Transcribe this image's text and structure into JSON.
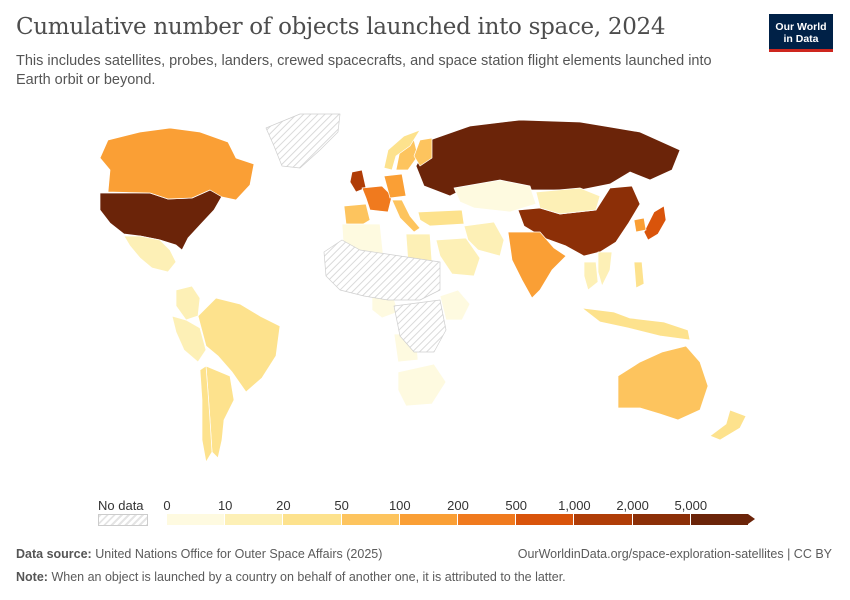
{
  "title": "Cumulative number of objects launched into space, 2024",
  "subtitle": "This includes satellites, probes, landers, crewed spacecrafts, and space station flight elements launched into Earth orbit or beyond.",
  "logo": {
    "line1": "Our World",
    "line2": "in Data"
  },
  "legend": {
    "nodata_label": "No data",
    "ticks": [
      "0",
      "10",
      "20",
      "50",
      "100",
      "200",
      "500",
      "1,000",
      "2,000",
      "5,000"
    ],
    "colors": [
      "#fefae0",
      "#fdf0b6",
      "#fde28d",
      "#fdc45e",
      "#fa9f35",
      "#f07a1e",
      "#d9540b",
      "#b03d07",
      "#8c2f07",
      "#6b2409"
    ]
  },
  "source_label": "Data source:",
  "source_text": "United Nations Office for Outer Space Affairs (2025)",
  "url": "OurWorldinData.org/space-exploration-satellites | CC BY",
  "note_label": "Note:",
  "note_text": "When an object is launched by a country on behalf of another one, it is attributed to the latter.",
  "countries": [
    {
      "name": "United States",
      "bin": 9
    },
    {
      "name": "Russia",
      "bin": 9
    },
    {
      "name": "China",
      "bin": 8
    },
    {
      "name": "United Kingdom",
      "bin": 7
    },
    {
      "name": "Japan",
      "bin": 6
    },
    {
      "name": "France",
      "bin": 5
    },
    {
      "name": "India",
      "bin": 4
    },
    {
      "name": "Canada",
      "bin": 4
    },
    {
      "name": "Germany",
      "bin": 4
    },
    {
      "name": "Australia",
      "bin": 3
    },
    {
      "name": "Brazil",
      "bin": 2
    },
    {
      "name": "Argentina",
      "bin": 2
    },
    {
      "name": "Spain",
      "bin": 3
    },
    {
      "name": "Italy",
      "bin": 3
    },
    {
      "name": "Mexico",
      "bin": 1
    },
    {
      "name": "Kazakhstan",
      "bin": 0
    },
    {
      "name": "Mongolia",
      "bin": 1
    },
    {
      "name": "Saudi Arabia",
      "bin": 1
    },
    {
      "name": "Egypt",
      "bin": 1
    },
    {
      "name": "Algeria",
      "bin": 0
    },
    {
      "name": "Nigeria",
      "bin": 0
    },
    {
      "name": "Kenya",
      "bin": 0
    },
    {
      "name": "Angola",
      "bin": 0
    },
    {
      "name": "South Africa",
      "bin": 0
    },
    {
      "name": "Indonesia",
      "bin": 2
    },
    {
      "name": "Thailand",
      "bin": 1
    },
    {
      "name": "Vietnam",
      "bin": 1
    },
    {
      "name": "Philippines",
      "bin": 2
    },
    {
      "name": "Peru",
      "bin": 1
    },
    {
      "name": "Colombia",
      "bin": 1
    },
    {
      "name": "Chile",
      "bin": 2
    },
    {
      "name": "New Zealand",
      "bin": 2
    },
    {
      "name": "Sweden",
      "bin": 3
    },
    {
      "name": "Finland",
      "bin": 3
    },
    {
      "name": "Norway",
      "bin": 2
    },
    {
      "name": "Turkey",
      "bin": 2
    },
    {
      "name": "Iran",
      "bin": 1
    },
    {
      "name": "South Korea",
      "bin": 4
    },
    {
      "name": "Greenland",
      "bin": -1
    },
    {
      "name": "Sahel",
      "bin": -1
    },
    {
      "name": "Central Africa",
      "bin": -1
    }
  ]
}
